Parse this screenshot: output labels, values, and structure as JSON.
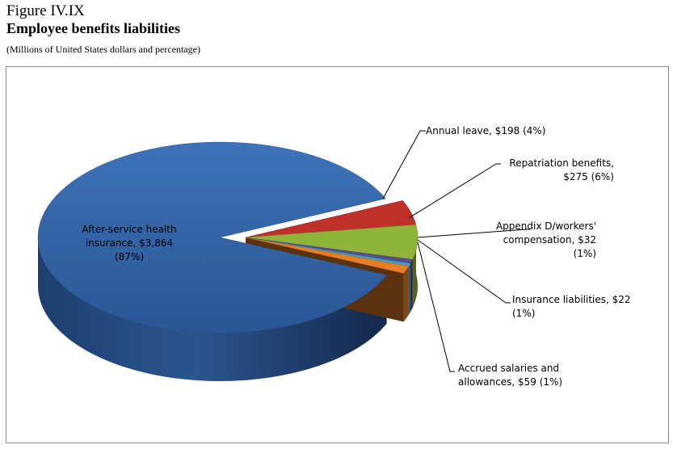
{
  "figure": {
    "label": "Figure IV.IX",
    "title": "Employee benefits liabilities",
    "subtitle": "(Millions of United States dollars and percentage)"
  },
  "chart_data": {
    "type": "pie",
    "style": "3d-exploded",
    "unit": "Millions of United States dollars",
    "slices": [
      {
        "name": "After-service health insurance",
        "value": 3864,
        "percent": 87,
        "color": "#2f5e9e",
        "label_lines": [
          "After-service health",
          "insurance,  $3,864",
          "(87%)"
        ]
      },
      {
        "name": "Annual leave",
        "value": 198,
        "percent": 4,
        "color": "#c0302b",
        "label_lines": [
          "Annual leave, $198 (4%)"
        ]
      },
      {
        "name": "Repatriation benefits",
        "value": 275,
        "percent": 6,
        "color": "#8fb43a",
        "label_lines": [
          "Repatriation benefits,",
          "$275 (6%)"
        ]
      },
      {
        "name": "Appendix D/workers' compensation",
        "value": 32,
        "percent": 1,
        "color": "#5a4c8c",
        "label_lines": [
          "Appendix D/workers'",
          "compensation,  $32",
          "(1%)"
        ]
      },
      {
        "name": "Insurance liabilities",
        "value": 22,
        "percent": 1,
        "color": "#3aa3c4",
        "label_lines": [
          "Insurance liabilities, $22",
          "(1%)"
        ]
      },
      {
        "name": "Accrued salaries and allowances",
        "value": 59,
        "percent": 1,
        "color": "#e97d25",
        "label_lines": [
          "Accrued salaries and",
          "allowances, $59 (1%)"
        ]
      }
    ]
  }
}
